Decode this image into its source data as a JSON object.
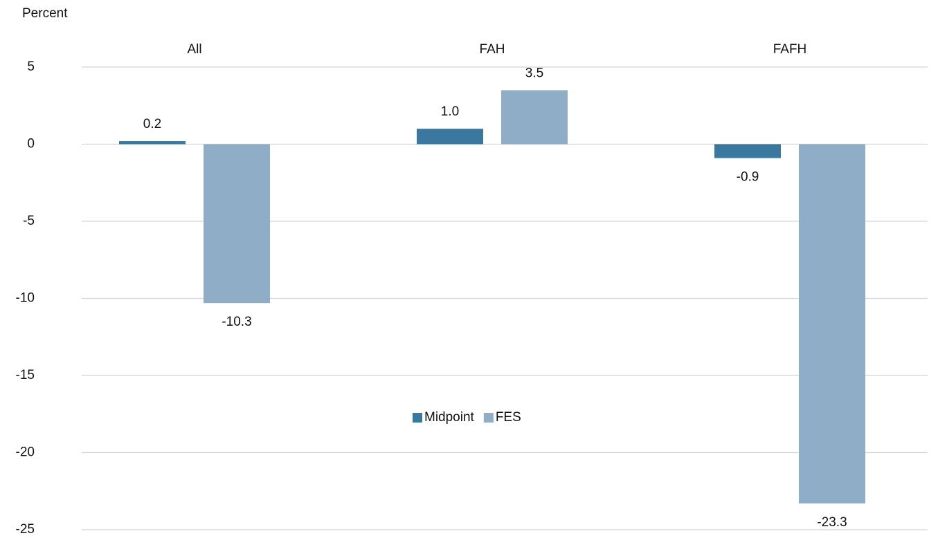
{
  "chart_data": {
    "type": "bar",
    "y_label": "Percent",
    "categories": [
      "All",
      "FAH",
      "FAFH"
    ],
    "series": [
      {
        "name": "Midpoint",
        "color": "#3a78a0",
        "values": [
          0.2,
          1.0,
          -0.9
        ],
        "value_labels": [
          "0.2",
          "1.0",
          "-0.9"
        ]
      },
      {
        "name": "FES",
        "color": "#8fadc7",
        "values": [
          -10.3,
          3.5,
          -23.3
        ],
        "value_labels": [
          "-10.3",
          "3.5",
          "-23.3"
        ]
      }
    ],
    "ylim": [
      -25,
      5
    ],
    "yticks": [
      -25,
      -20,
      -15,
      -10,
      -5,
      0,
      5
    ],
    "grid": true,
    "legend": "center"
  }
}
